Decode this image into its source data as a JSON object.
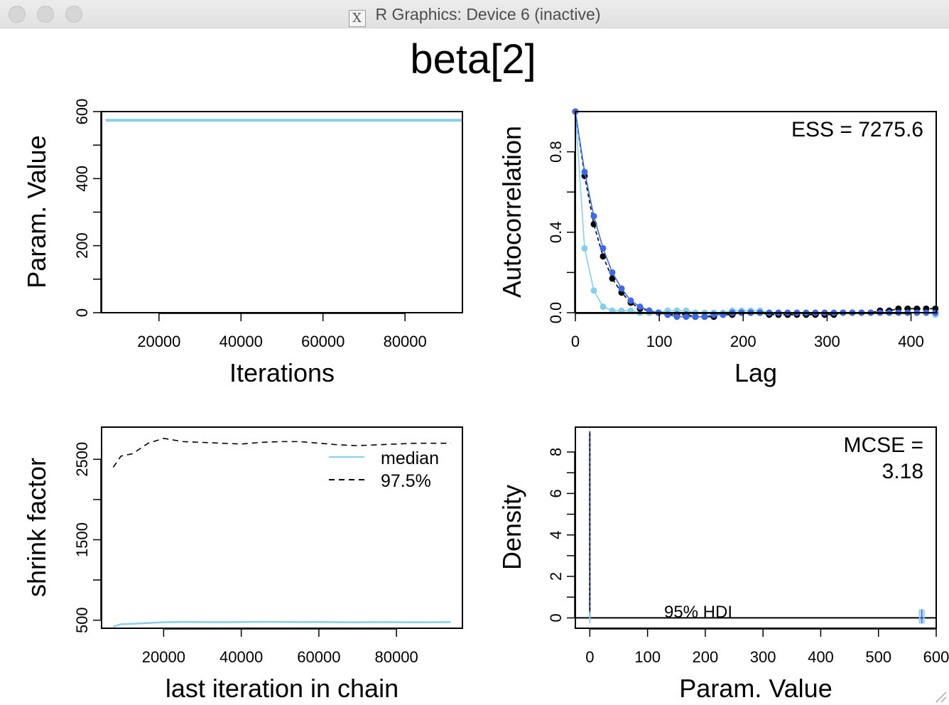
{
  "window": {
    "title": "R Graphics: Device 6 (inactive)",
    "icon": "x11-icon",
    "traffic_lights": [
      "close-button",
      "minimize-button",
      "zoom-button"
    ]
  },
  "figure_title": "beta[2]",
  "colors": {
    "skyblue": "#87ceeb",
    "royalblue": "#4169e1",
    "black": "#000000"
  },
  "chart_data": [
    {
      "name": "trace",
      "type": "line",
      "xlabel": "Iterations",
      "ylabel": "Param. Value",
      "xlim": [
        6000,
        94000
      ],
      "ylim": [
        0,
        600
      ],
      "xticks": [
        20000,
        40000,
        60000,
        80000
      ],
      "yticks": [
        0,
        200,
        400,
        600
      ],
      "series": [
        {
          "color": "#87ceeb",
          "style": "solid",
          "x": [
            7000,
            94000
          ],
          "y": [
            574,
            574
          ]
        },
        {
          "color": "#4169e1",
          "style": "dashed",
          "x": [
            7000,
            94000
          ],
          "y": [
            0,
            0
          ]
        }
      ]
    },
    {
      "name": "autocorrelation",
      "type": "line",
      "xlabel": "Lag",
      "ylabel": "Autocorrelation",
      "xlim": [
        0,
        430
      ],
      "ylim": [
        0,
        1
      ],
      "xticks": [
        0,
        100,
        200,
        300,
        400
      ],
      "yticks": [
        0.0,
        0.4,
        0.8
      ],
      "ytick_labels": [
        "0.0",
        "0.4",
        "0.8"
      ],
      "annotation": "ESS = 7275.6",
      "lags": [
        0,
        11,
        22,
        33,
        44,
        55,
        66,
        77,
        88,
        99,
        110,
        121,
        132,
        143,
        154,
        165,
        176,
        187,
        198,
        209,
        220,
        231,
        242,
        253,
        264,
        275,
        286,
        297,
        308,
        319,
        330,
        341,
        352,
        363,
        374,
        385,
        396,
        407,
        418,
        429
      ],
      "series": [
        {
          "color": "#87ceeb",
          "values": [
            1.0,
            0.32,
            0.11,
            0.03,
            0.01,
            0.01,
            0.01,
            0.0,
            0.0,
            0.0,
            0.01,
            0.01,
            0.01,
            0.0,
            0.0,
            0.0,
            0.0,
            0.01,
            0.01,
            0.01,
            0.01,
            0.0,
            0.0,
            0.0,
            0.0,
            0.0,
            0.0,
            0.0,
            0.0,
            0.0,
            0.0,
            0.0,
            0.0,
            0.0,
            0.0,
            0.0,
            0.0,
            0.0,
            0.0,
            -0.01
          ]
        },
        {
          "color": "#000000",
          "values": [
            1.0,
            0.68,
            0.44,
            0.28,
            0.17,
            0.1,
            0.05,
            0.02,
            0.01,
            0.0,
            -0.01,
            -0.01,
            -0.01,
            -0.02,
            -0.02,
            -0.02,
            -0.01,
            -0.01,
            0.0,
            0.0,
            0.0,
            -0.01,
            -0.01,
            -0.01,
            -0.01,
            -0.01,
            -0.01,
            -0.01,
            -0.01,
            0.0,
            0.0,
            0.0,
            0.0,
            0.01,
            0.01,
            0.02,
            0.02,
            0.02,
            0.02,
            0.02
          ]
        },
        {
          "color": "#4169e1",
          "values": [
            1.0,
            0.7,
            0.48,
            0.32,
            0.2,
            0.12,
            0.06,
            0.03,
            0.01,
            0.0,
            -0.01,
            -0.02,
            -0.02,
            -0.02,
            -0.02,
            -0.01,
            -0.01,
            0.0,
            0.0,
            0.0,
            0.0,
            0.0,
            0.0,
            0.0,
            0.0,
            0.0,
            0.0,
            0.0,
            0.0,
            0.0,
            0.0,
            0.0,
            0.0,
            0.0,
            0.0,
            0.0,
            0.0,
            0.0,
            0.0,
            0.0
          ]
        }
      ]
    },
    {
      "name": "gelman-shrink",
      "type": "line",
      "xlabel": "last iteration in chain",
      "ylabel": "shrink factor",
      "xlim": [
        4000,
        97000
      ],
      "ylim": [
        400,
        2900
      ],
      "xticks": [
        20000,
        40000,
        60000,
        80000
      ],
      "yticks": [
        500,
        1500,
        2500
      ],
      "legend": [
        {
          "label": "median",
          "style": "solid",
          "color": "#87ceeb"
        },
        {
          "label": "97.5%",
          "style": "dashed",
          "color": "#000000"
        }
      ],
      "legend_position": "top-right",
      "series": [
        {
          "name": "median",
          "color": "#87ceeb",
          "style": "solid",
          "x": [
            7000,
            9000,
            12000,
            16000,
            20000,
            25000,
            30000,
            35000,
            40000,
            45000,
            50000,
            55000,
            60000,
            65000,
            70000,
            75000,
            80000,
            85000,
            90000,
            94000
          ],
          "y": [
            420,
            450,
            455,
            465,
            475,
            478,
            476,
            475,
            477,
            479,
            478,
            476,
            477,
            475,
            474,
            476,
            475,
            474,
            475,
            476
          ]
        },
        {
          "name": "97.5%",
          "color": "#000000",
          "style": "dashed",
          "x": [
            7000,
            9000,
            12000,
            16000,
            20000,
            25000,
            30000,
            35000,
            40000,
            45000,
            50000,
            55000,
            60000,
            65000,
            70000,
            75000,
            80000,
            85000,
            90000,
            94000
          ],
          "y": [
            2400,
            2540,
            2570,
            2700,
            2760,
            2720,
            2710,
            2700,
            2690,
            2710,
            2720,
            2720,
            2700,
            2680,
            2670,
            2680,
            2690,
            2700,
            2700,
            2700
          ]
        }
      ]
    },
    {
      "name": "density",
      "type": "line",
      "xlabel": "Param. Value",
      "ylabel": "Density",
      "xlim": [
        -25,
        600
      ],
      "ylim": [
        -0.5,
        9.2
      ],
      "xticks": [
        0,
        100,
        200,
        300,
        400,
        500,
        600
      ],
      "yticks": [
        0,
        2,
        4,
        6,
        8
      ],
      "annotations": [
        "MCSE =",
        "3.18"
      ],
      "hdi_label": "95% HDI",
      "hdi_low": 0,
      "hdi_high": 576,
      "density_spike": {
        "x": 0,
        "height": 9.0
      },
      "mode_cluster": 575
    }
  ]
}
